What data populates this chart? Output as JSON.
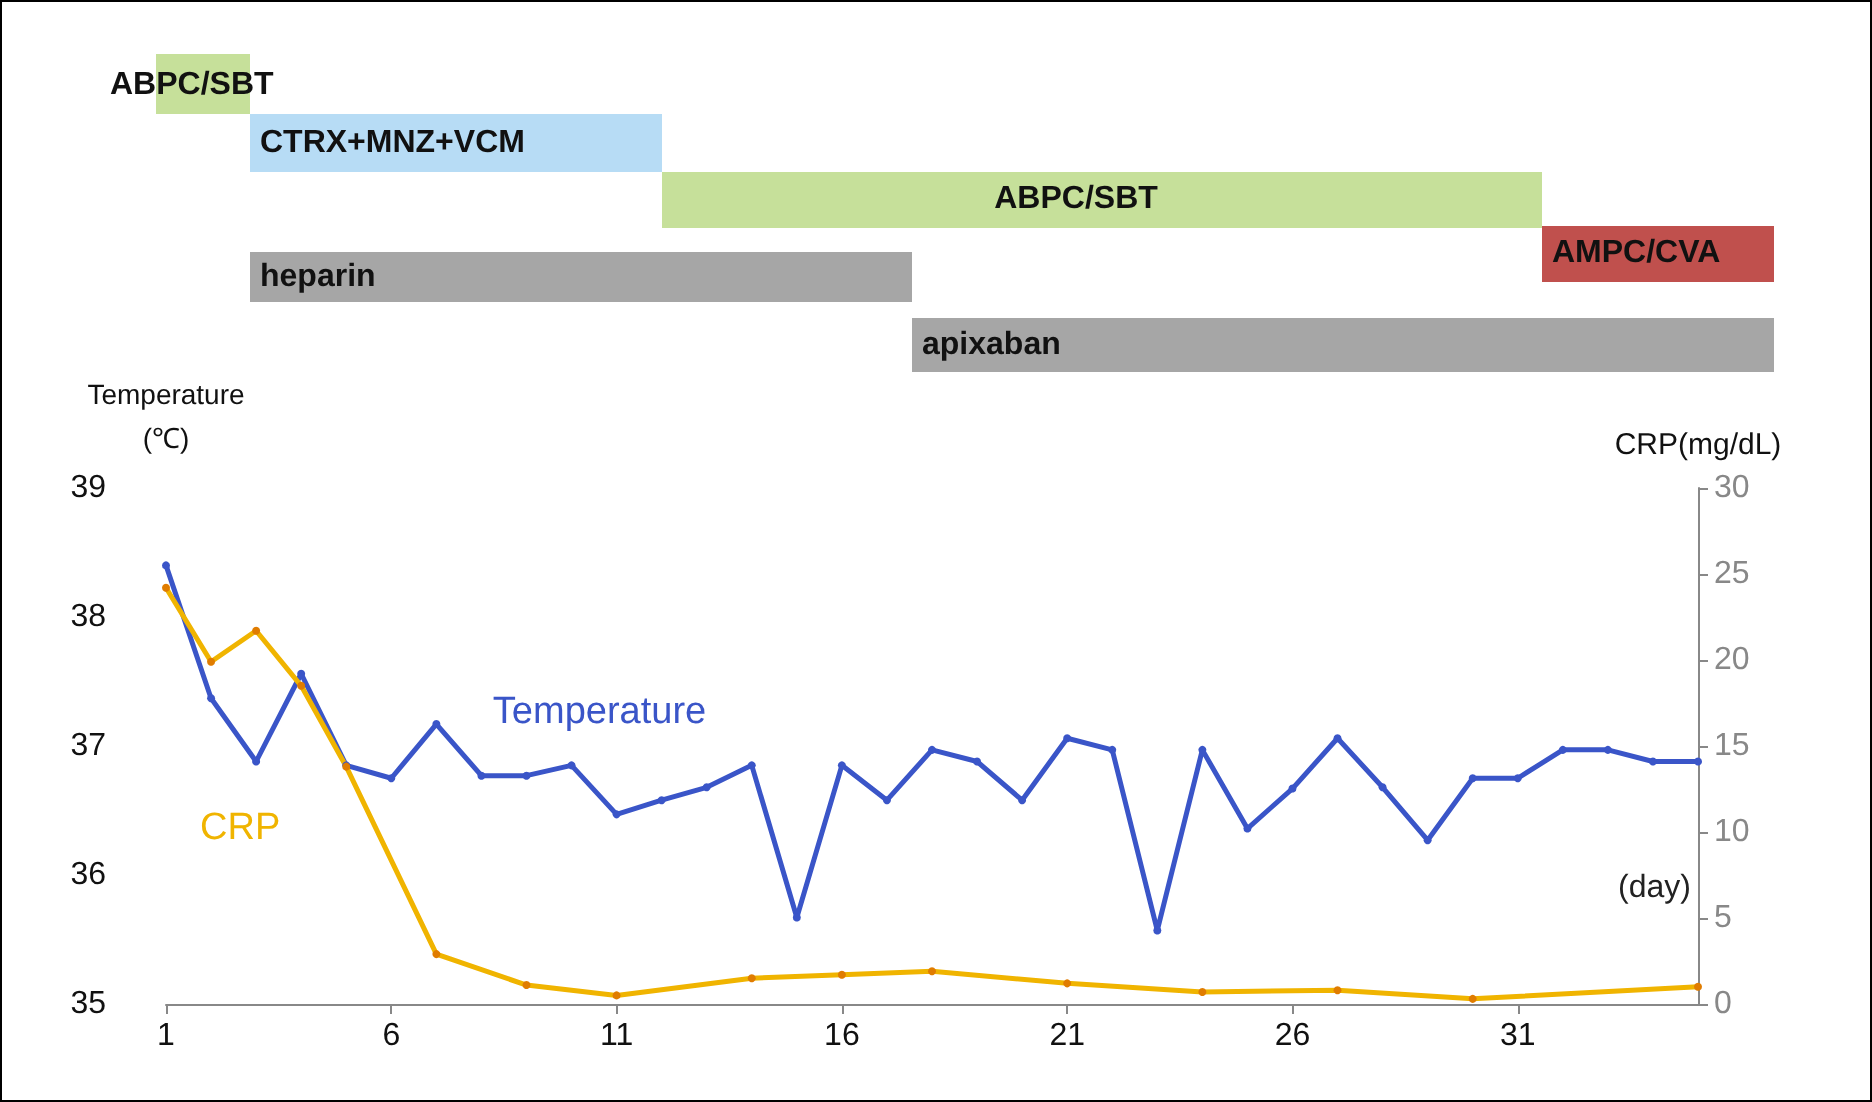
{
  "chart_data": [
    {
      "type": "other",
      "annotations": [
        "ABPC/SBT",
        "CTRX+MNZ+VCM",
        "ABPC/SBT",
        "heparin",
        "AMPC/CVA",
        "apixaban"
      ]
    },
    {
      "type": "line",
      "xlabel": "(day)",
      "ylabel": "Temperature\n(℃)",
      "y2label": "CRP(mg/dL)",
      "xlim": [
        1,
        35
      ],
      "xticks": [
        1,
        6,
        11,
        16,
        21,
        26,
        31
      ],
      "ylim": [
        35,
        39
      ],
      "yticks": [
        35,
        36,
        37,
        38,
        39
      ],
      "y2lim": [
        0,
        30
      ],
      "y2ticks": [
        0,
        5,
        10,
        15,
        20,
        25,
        30
      ],
      "grid": false,
      "legend": false,
      "marker": "circle",
      "line_style": "solid",
      "series": [
        {
          "name": "Temperature",
          "color": "#3a55c8",
          "x": [
            1,
            2,
            3,
            4,
            5,
            6,
            7,
            8,
            9,
            10,
            11,
            12,
            13,
            14,
            15,
            16,
            17,
            18,
            19,
            20,
            21,
            22,
            23,
            24,
            25,
            26,
            27,
            28,
            29,
            30,
            31,
            32,
            33,
            34,
            35
          ],
          "values": [
            38.4,
            37.37,
            36.88,
            37.56,
            36.85,
            36.75,
            37.17,
            36.77,
            36.77,
            36.85,
            36.47,
            36.58,
            36.68,
            36.85,
            35.67,
            36.85,
            36.58,
            36.97,
            36.88,
            36.58,
            37.06,
            36.97,
            35.57,
            36.97,
            36.36,
            36.67,
            37.06,
            36.68,
            36.27,
            36.75,
            36.75,
            36.97,
            36.97,
            36.88,
            36.88
          ]
        },
        {
          "name": "CRP",
          "color": "#f0b400",
          "axis": "y2",
          "x": [
            1,
            2,
            3,
            4,
            5,
            7,
            9,
            11,
            14,
            16,
            18,
            21,
            24,
            27,
            30,
            35
          ],
          "values": [
            24.2,
            19.9,
            21.7,
            18.5,
            13.8,
            2.9,
            1.1,
            0.5,
            1.5,
            1.7,
            1.9,
            1.2,
            0.7,
            0.8,
            0.3,
            1.0
          ]
        }
      ]
    }
  ]
}
